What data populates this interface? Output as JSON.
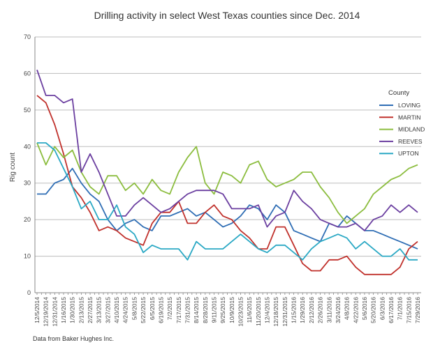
{
  "chart_data": {
    "type": "line",
    "title": "Drilling activity in select West Texas counties since Dec. 2014",
    "xlabel": "",
    "ylabel": "Rig count",
    "ylim": [
      0,
      70
    ],
    "yticks": [
      0,
      10,
      20,
      30,
      40,
      50,
      60,
      70
    ],
    "grid": true,
    "legend_title": "County",
    "legend_placement": "right",
    "source_note": "Data from Baker Hughes Inc.",
    "categories": [
      "12/5/2014",
      "12/19/2014",
      "12/31/2014",
      "1/16/2015",
      "1/30/2015",
      "2/13/2015",
      "2/27/2015",
      "3/13/2015",
      "3/27/2015",
      "4/10/2015",
      "4/24/2015",
      "5/8/2015",
      "5/22/2015",
      "6/5/2015",
      "6/19/2015",
      "7/2/2015",
      "7/17/2015",
      "7/31/2015",
      "8/14/2015",
      "8/28/2015",
      "9/11/2015",
      "9/25/2015",
      "10/9/2015",
      "10/23/2015",
      "11/6/2015",
      "11/20/2015",
      "12/4/2015",
      "12/18/2015",
      "12/31/2015",
      "1/15/2016",
      "1/29/2016",
      "2/12/2016",
      "2/26/2016",
      "3/11/2016",
      "3/24/2016",
      "4/8/2016",
      "4/22/2016",
      "5/6/2016",
      "5/20/2016",
      "6/3/2016",
      "6/17/2016",
      "7/1/2016",
      "7/15/2016",
      "7/29/2016"
    ],
    "series": [
      {
        "name": "LOVING",
        "color": "#2e6db4",
        "values": [
          27,
          27,
          30,
          31,
          34,
          30,
          27,
          25,
          20,
          17,
          19,
          20,
          18,
          17,
          21,
          21,
          22,
          23,
          21,
          22,
          20,
          18,
          19,
          21,
          24,
          23,
          20,
          24,
          22,
          17,
          16,
          15,
          14,
          19,
          18,
          21,
          19,
          17,
          17,
          16,
          15,
          14,
          13,
          12
        ]
      },
      {
        "name": "MARTIN",
        "color": "#c0302b",
        "values": [
          54,
          52,
          46,
          38,
          29,
          26,
          22,
          17,
          18,
          17,
          15,
          14,
          13,
          19,
          22,
          22,
          25,
          19,
          19,
          22,
          24,
          21,
          20,
          17,
          15,
          12,
          12,
          18,
          18,
          13,
          8,
          6,
          6,
          9,
          9,
          10,
          7,
          5,
          5,
          5,
          5,
          7,
          12,
          14
        ]
      },
      {
        "name": "MIDLAND",
        "color": "#8cbd3f",
        "values": [
          41,
          35,
          40,
          37,
          39,
          33,
          29,
          27,
          32,
          32,
          28,
          30,
          27,
          31,
          28,
          27,
          33,
          37,
          40,
          30,
          27,
          33,
          32,
          30,
          35,
          36,
          31,
          29,
          30,
          31,
          33,
          33,
          29,
          26,
          22,
          19,
          21,
          23,
          27,
          29,
          31,
          32,
          34,
          35
        ]
      },
      {
        "name": "REEVES",
        "color": "#6b3fa0",
        "values": [
          61,
          54,
          54,
          52,
          53,
          33,
          38,
          33,
          27,
          21,
          21,
          24,
          26,
          24,
          22,
          23,
          25,
          27,
          28,
          28,
          28,
          27,
          23,
          23,
          23,
          24,
          18,
          21,
          22,
          28,
          25,
          23,
          20,
          19,
          18,
          18,
          19,
          17,
          20,
          21,
          24,
          22,
          24,
          22
        ]
      },
      {
        "name": "UPTON",
        "color": "#2aa8c4",
        "values": [
          41,
          41,
          39,
          34,
          29,
          23,
          25,
          20,
          20,
          24,
          18,
          16,
          11,
          13,
          12,
          12,
          12,
          9,
          14,
          12,
          12,
          12,
          14,
          16,
          14,
          12,
          11,
          13,
          13,
          11,
          9,
          12,
          14,
          15,
          16,
          15,
          12,
          14,
          12,
          10,
          10,
          12,
          9,
          9
        ]
      }
    ]
  }
}
